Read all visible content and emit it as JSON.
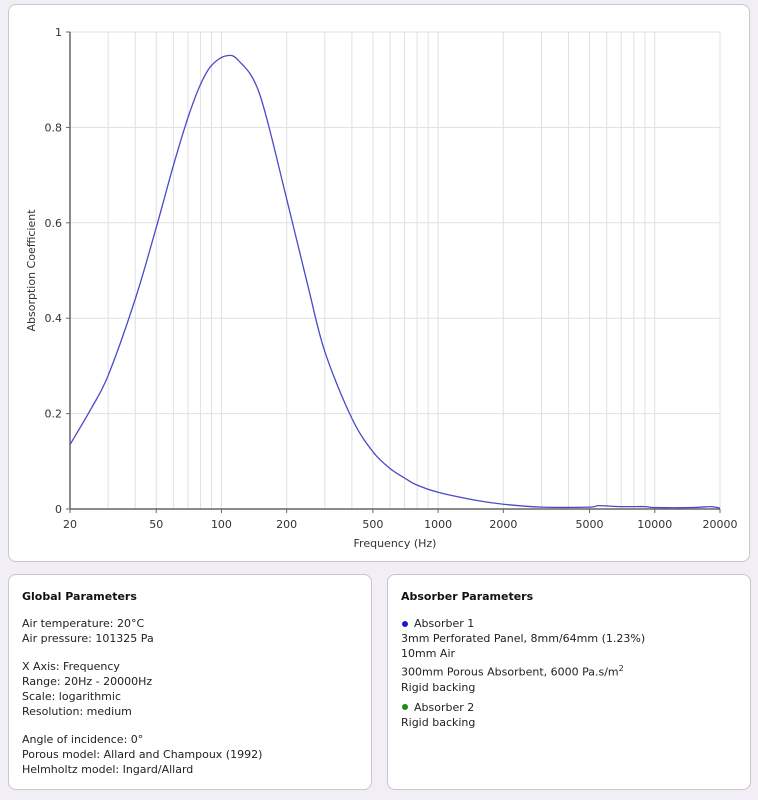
{
  "chart_data": {
    "type": "line",
    "title": "",
    "xlabel": "Frequency (Hz)",
    "ylabel": "Absorption Coefficient",
    "xscale": "log",
    "xlim": [
      20,
      20000
    ],
    "ylim": [
      0,
      1
    ],
    "xticks": [
      20,
      50,
      100,
      200,
      500,
      1000,
      2000,
      5000,
      10000,
      20000
    ],
    "yticks": [
      0,
      0.2,
      0.4,
      0.6,
      0.8,
      1
    ],
    "ytick_labels": [
      "0",
      "0.2",
      "0.4",
      "0.6",
      "0.8",
      "1"
    ],
    "grid": true,
    "series": [
      {
        "name": "Absorber 1",
        "color": "#4a4ac8",
        "x": [
          20,
          25,
          30,
          40,
          50,
          60,
          70,
          80,
          90,
          105,
          120,
          150,
          200,
          250,
          300,
          400,
          500,
          600,
          700,
          800,
          1000,
          1500,
          2000,
          3000,
          5000,
          5500,
          7000,
          9000,
          10000,
          15000,
          18000,
          20000
        ],
        "y": [
          0.135,
          0.21,
          0.28,
          0.44,
          0.59,
          0.72,
          0.82,
          0.89,
          0.93,
          0.95,
          0.94,
          0.87,
          0.65,
          0.47,
          0.33,
          0.19,
          0.12,
          0.085,
          0.065,
          0.05,
          0.035,
          0.018,
          0.01,
          0.004,
          0.004,
          0.007,
          0.005,
          0.005,
          0.003,
          0.003,
          0.005,
          0.002
        ]
      }
    ]
  },
  "global": {
    "title": "Global Parameters",
    "air_temp": "Air temperature: 20°C",
    "air_pressure": "Air pressure: 101325 Pa",
    "x_axis": "X Axis: Frequency",
    "range": "Range: 20Hz - 20000Hz",
    "scale": "Scale: logarithmic",
    "resolution": "Resolution: medium",
    "angle": "Angle of incidence: 0°",
    "porous": "Porous model: Allard and Champoux (1992)",
    "helmholtz": "Helmholtz model: Ingard/Allard"
  },
  "absorbers": {
    "title": "Absorber Parameters",
    "a1": {
      "name": "Absorber 1",
      "color": "#1a1acc",
      "l1": "3mm Perforated Panel, 8mm/64mm (1.23%)",
      "l2": "10mm Air",
      "l3": "300mm Porous Absorbent, 6000 Pa.s/m",
      "l3sup": "2",
      "l4": "Rigid backing"
    },
    "a2": {
      "name": "Absorber 2",
      "color": "#1a8a1a",
      "l1": "Rigid backing"
    }
  }
}
